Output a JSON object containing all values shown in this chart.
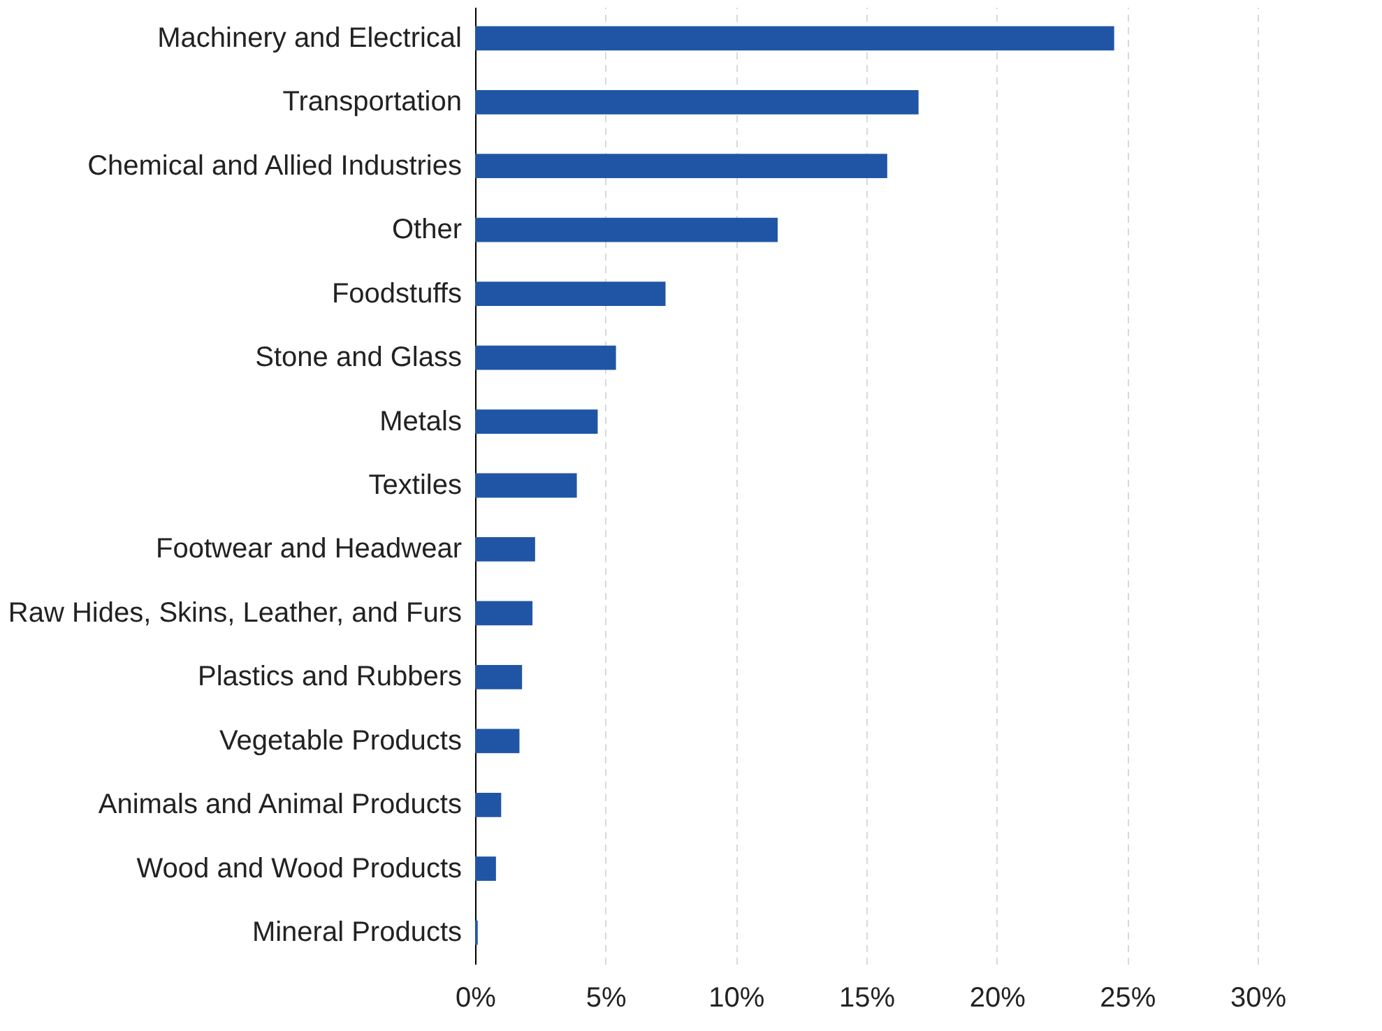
{
  "chart_data": {
    "type": "bar",
    "orientation": "horizontal",
    "categories": [
      "Machinery and Electrical",
      "Transportation",
      "Chemical and Allied Industries",
      "Other",
      "Foodstuffs",
      "Stone and Glass",
      "Metals",
      "Textiles",
      "Footwear and Headwear",
      "Raw Hides, Skins, Leather, and Furs",
      "Plastics and Rubbers",
      "Vegetable Products",
      "Animals and Animal Products",
      "Wood and Wood Products",
      "Mineral Products"
    ],
    "values": [
      24.5,
      17.0,
      15.8,
      11.6,
      7.3,
      5.4,
      4.7,
      3.9,
      2.3,
      2.2,
      1.8,
      1.7,
      1.0,
      0.8,
      0.1
    ],
    "color": "#2055a5",
    "xlim": [
      0,
      30
    ],
    "xticks": [
      {
        "value": 0,
        "label": "0%"
      },
      {
        "value": 5,
        "label": "5%"
      },
      {
        "value": 10,
        "label": "10%"
      },
      {
        "value": 15,
        "label": "15%"
      },
      {
        "value": 20,
        "label": "20%"
      },
      {
        "value": 25,
        "label": "25%"
      },
      {
        "value": 30,
        "label": "30%"
      }
    ],
    "grid": "x"
  }
}
